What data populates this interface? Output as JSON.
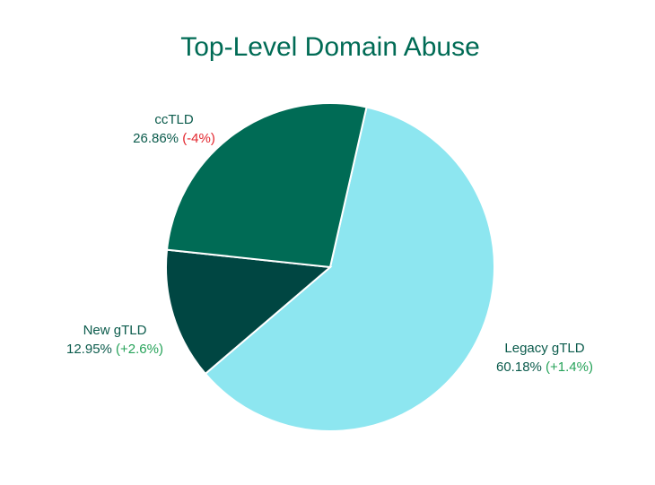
{
  "chart_data": {
    "type": "pie",
    "title": "Top-Level Domain Abuse",
    "slices": [
      {
        "name": "Legacy gTLD",
        "value": 60.18,
        "value_label": "60.18%",
        "change_label": "(+1.4%)",
        "color": "#8de6f0",
        "change_color": "#27a35a"
      },
      {
        "name": "New gTLD",
        "value": 12.95,
        "value_label": "12.95%",
        "change_label": "(+2.6%)",
        "color": "#004642",
        "change_color": "#27a35a"
      },
      {
        "name": "ccTLD",
        "value": 26.86,
        "value_label": "26.86%",
        "change_label": "(-4%)",
        "color": "#006b55",
        "change_color": "#e3262e"
      }
    ],
    "title_color": "#006b55",
    "label_color": "#0b5b4c"
  }
}
